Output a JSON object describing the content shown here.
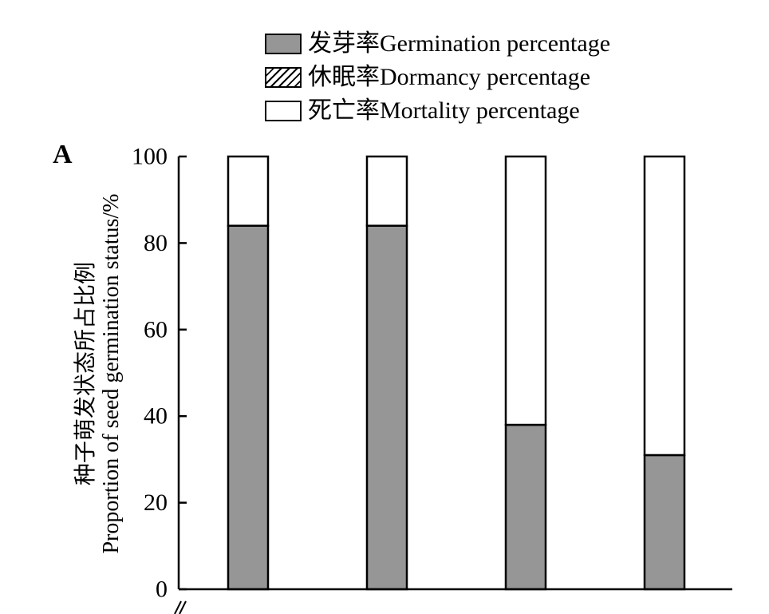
{
  "chart_data": {
    "type": "bar",
    "stacked": true,
    "panel_label": "A",
    "categories": [
      "",
      "",
      "",
      ""
    ],
    "series": [
      {
        "name": "发芽率Germination percentage",
        "color": "#969696",
        "pattern": "solid",
        "values": [
          84,
          84,
          38,
          31
        ]
      },
      {
        "name": "休眠率Dormancy percentage",
        "color": "#ffffff",
        "pattern": "hatch",
        "values": [
          0,
          0,
          0,
          0
        ]
      },
      {
        "name": "死亡率Mortality percentage",
        "color": "#ffffff",
        "pattern": "solid",
        "values": [
          16,
          16,
          62,
          69
        ]
      }
    ],
    "ylabel_cn": "种子萌发状态所占比例",
    "ylabel_en": "Proportion of seed germination status/%",
    "ylim": [
      0,
      100
    ],
    "yticks": [
      0,
      20,
      40,
      60,
      80,
      100
    ],
    "legend_position": "top"
  }
}
